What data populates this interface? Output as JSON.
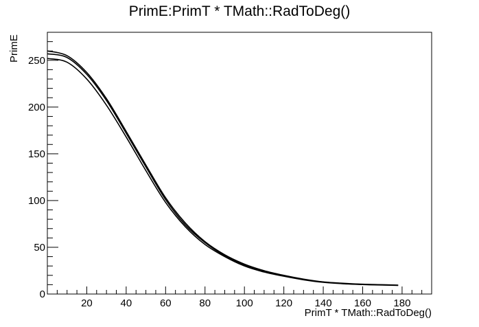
{
  "chart_data": {
    "type": "line",
    "title": "PrimE:PrimT * TMath::RadToDeg()",
    "xlabel": "PrimT * TMath::RadToDeg()",
    "ylabel": "PrimE",
    "xlim": [
      0,
      195
    ],
    "ylim": [
      0,
      280
    ],
    "x_ticks": [
      20,
      40,
      60,
      80,
      100,
      120,
      140,
      160,
      180
    ],
    "y_ticks": [
      0,
      50,
      100,
      150,
      200,
      250
    ],
    "grid": false,
    "legend": "none",
    "colors": {
      "line": "#000000",
      "frame": "#000000",
      "background": "#ffffff"
    },
    "series": [
      {
        "x": [
          0,
          10,
          20,
          30,
          40,
          50,
          60,
          70,
          80,
          90,
          100,
          110,
          120,
          130,
          140,
          150,
          160,
          170,
          178
        ],
        "y": [
          260,
          255,
          237,
          209,
          174,
          138,
          103,
          76,
          56,
          42,
          32,
          25,
          20,
          16,
          13,
          11.5,
          10.5,
          10,
          9.5
        ]
      },
      {
        "x": [
          0,
          10,
          20,
          30,
          40,
          50,
          60,
          70,
          80,
          90,
          100,
          110,
          120,
          130,
          140,
          150,
          160,
          170,
          178
        ],
        "y": [
          257,
          253,
          235,
          207,
          172,
          136,
          101,
          74,
          55,
          41,
          31,
          24,
          19.5,
          15.5,
          12.8,
          11.3,
          10.3,
          9.8,
          9.3
        ]
      },
      {
        "x": [
          0,
          10,
          20,
          30,
          40,
          50,
          60,
          70,
          80,
          90,
          100,
          110,
          120,
          130,
          140,
          150,
          160,
          170,
          178
        ],
        "y": [
          252,
          248,
          230,
          202,
          168,
          132,
          98,
          72,
          53,
          40,
          30,
          23.5,
          19,
          15.2,
          12.5,
          11,
          10.1,
          9.6,
          9.2
        ]
      }
    ]
  }
}
